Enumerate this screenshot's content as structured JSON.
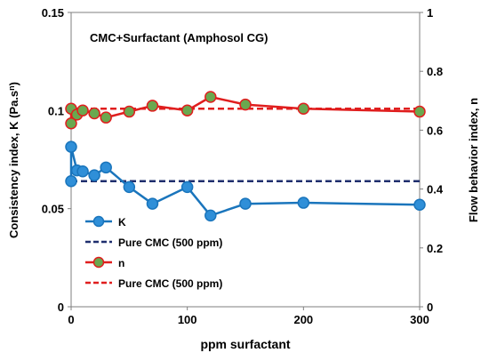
{
  "chart_data": {
    "type": "line",
    "title": "CMC+Surfactant (Amphosol CG)",
    "xlabel": "ppm surfactant",
    "ylabel_left": "Consistency index, K (Pa.s",
    "ylabel_left_sup": "n",
    "ylabel_left_end": ")",
    "ylabel_right": "Flow behavior index, n",
    "xlim": [
      0,
      300
    ],
    "ylim_left": [
      0,
      0.15
    ],
    "ylim_right": [
      0,
      1
    ],
    "x_ticks": [
      "0",
      "100",
      "200",
      "300"
    ],
    "y_left_ticks": [
      "0",
      "0.05",
      "0.1",
      "0.15"
    ],
    "y_right_ticks": [
      "0",
      "0.2",
      "0.4",
      "0.6",
      "0.8",
      "1"
    ],
    "grid": false,
    "legend_position": "bottom-left",
    "series": [
      {
        "name": "K",
        "axis": "left",
        "color": "#1a75bc",
        "marker_fill": "#2f8fd8",
        "points": [
          [
            0,
            0.064
          ],
          [
            0,
            0.0815
          ],
          [
            5,
            0.0695
          ],
          [
            10,
            0.069
          ],
          [
            20,
            0.067
          ],
          [
            30,
            0.071
          ],
          [
            50,
            0.061
          ],
          [
            70,
            0.0525
          ],
          [
            100,
            0.061
          ],
          [
            120,
            0.0465
          ],
          [
            150,
            0.0525
          ],
          [
            200,
            0.053
          ],
          [
            300,
            0.052
          ]
        ]
      },
      {
        "name": "Pure CMC (500 ppm)",
        "axis": "left",
        "style": "dashed",
        "color": "#1f2f6e",
        "y": 0.064
      },
      {
        "name": "n",
        "axis": "right",
        "color": "#e01e1e",
        "marker_fill": "#6aa84f",
        "points": [
          [
            0,
            0.673
          ],
          [
            0,
            0.623
          ],
          [
            5,
            0.653
          ],
          [
            10,
            0.667
          ],
          [
            20,
            0.657
          ],
          [
            30,
            0.643
          ],
          [
            50,
            0.663
          ],
          [
            70,
            0.683
          ],
          [
            100,
            0.667
          ],
          [
            120,
            0.713
          ],
          [
            150,
            0.687
          ],
          [
            200,
            0.673
          ],
          [
            300,
            0.663
          ]
        ]
      },
      {
        "name": "Pure CMC (500 ppm)",
        "axis": "right",
        "style": "dashed",
        "color": "#e01e1e",
        "y": 0.673
      }
    ]
  }
}
